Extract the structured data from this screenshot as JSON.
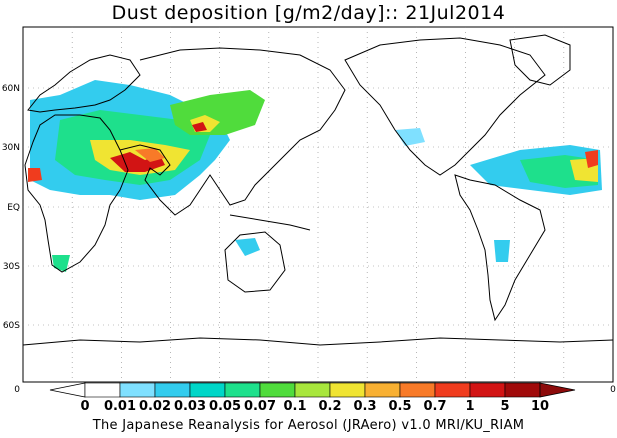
{
  "title": "Dust deposition [g/m2/day]:: 21Jul2014",
  "footer": "The Japanese Reanalysis for Aerosol (JRAero) v1.0 MRI/KU_RIAM",
  "map": {
    "lat_labels": [
      "60N",
      "30N",
      "EQ",
      "30S",
      "60S"
    ],
    "edge_labels": {
      "left": "0",
      "right": "0"
    }
  },
  "colorbar": {
    "labels": [
      "0",
      "0.01",
      "0.02",
      "0.03",
      "0.05",
      "0.07",
      "0.1",
      "0.2",
      "0.3",
      "0.5",
      "0.7",
      "1",
      "5",
      "10"
    ],
    "colors": [
      "#ffffff",
      "#ffffff",
      "#7fe0ff",
      "#33ccee",
      "#00d6c8",
      "#1ee08c",
      "#50dc3c",
      "#a8e63c",
      "#f0e432",
      "#f8b032",
      "#f87a28",
      "#f03c1e",
      "#d21414",
      "#a00a0a",
      "#8c0a0a"
    ]
  }
}
